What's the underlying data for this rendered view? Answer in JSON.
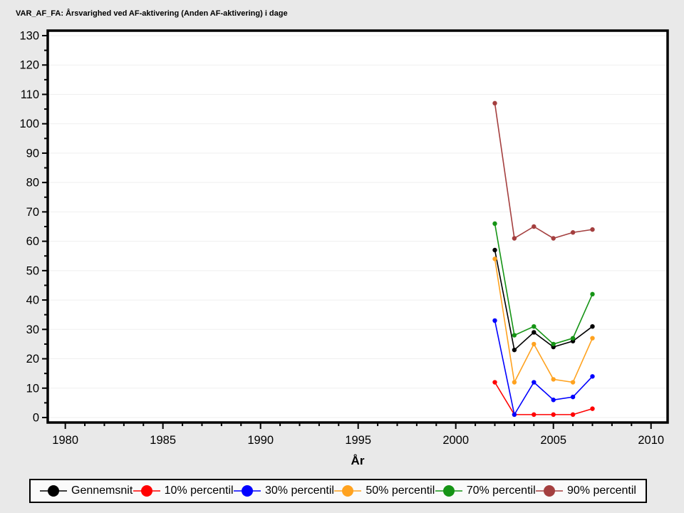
{
  "chart_data": {
    "type": "line",
    "title": "VAR_AF_FA: Årsvarighed ved AF-aktivering (Anden AF-aktivering) i dage",
    "xlabel": "År",
    "ylabel": "",
    "x": [
      2002,
      2003,
      2004,
      2005,
      2006,
      2007
    ],
    "series": [
      {
        "name": "Gennemsnit",
        "color": "#000000",
        "values": [
          57,
          23,
          29,
          24,
          26,
          31
        ]
      },
      {
        "name": "10% percentil",
        "color": "#FF0000",
        "values": [
          12,
          1,
          1,
          1,
          1,
          3
        ]
      },
      {
        "name": "30% percentil",
        "color": "#0000FF",
        "values": [
          33,
          1,
          12,
          6,
          7,
          14
        ]
      },
      {
        "name": "50% percentil",
        "color": "#FFA21F",
        "values": [
          54,
          12,
          25,
          13,
          12,
          27
        ]
      },
      {
        "name": "70% percentil",
        "color": "#159415",
        "values": [
          66,
          28,
          31,
          25,
          27,
          42
        ]
      },
      {
        "name": "90% percentil",
        "color": "#A43F3F",
        "values": [
          107,
          61,
          65,
          61,
          63,
          64
        ]
      }
    ],
    "x_ticks_major": [
      1980,
      1985,
      1990,
      1995,
      2000,
      2005,
      2010
    ],
    "x_tick_minor_step": 1,
    "y_ticks_major": [
      0,
      10,
      20,
      30,
      40,
      50,
      60,
      70,
      80,
      90,
      100,
      110,
      120,
      130
    ],
    "y_tick_minor_step": 5,
    "xlim": [
      1979.1,
      2010.85
    ],
    "ylim": [
      -1.7,
      131.7
    ],
    "grid": "horizontal-major",
    "gridline_color": "#EFEFEF",
    "plot_background": "#FFFFFF",
    "page_background": "#E9E9E9",
    "frame_color": "#000000",
    "legend_position": "bottom"
  }
}
